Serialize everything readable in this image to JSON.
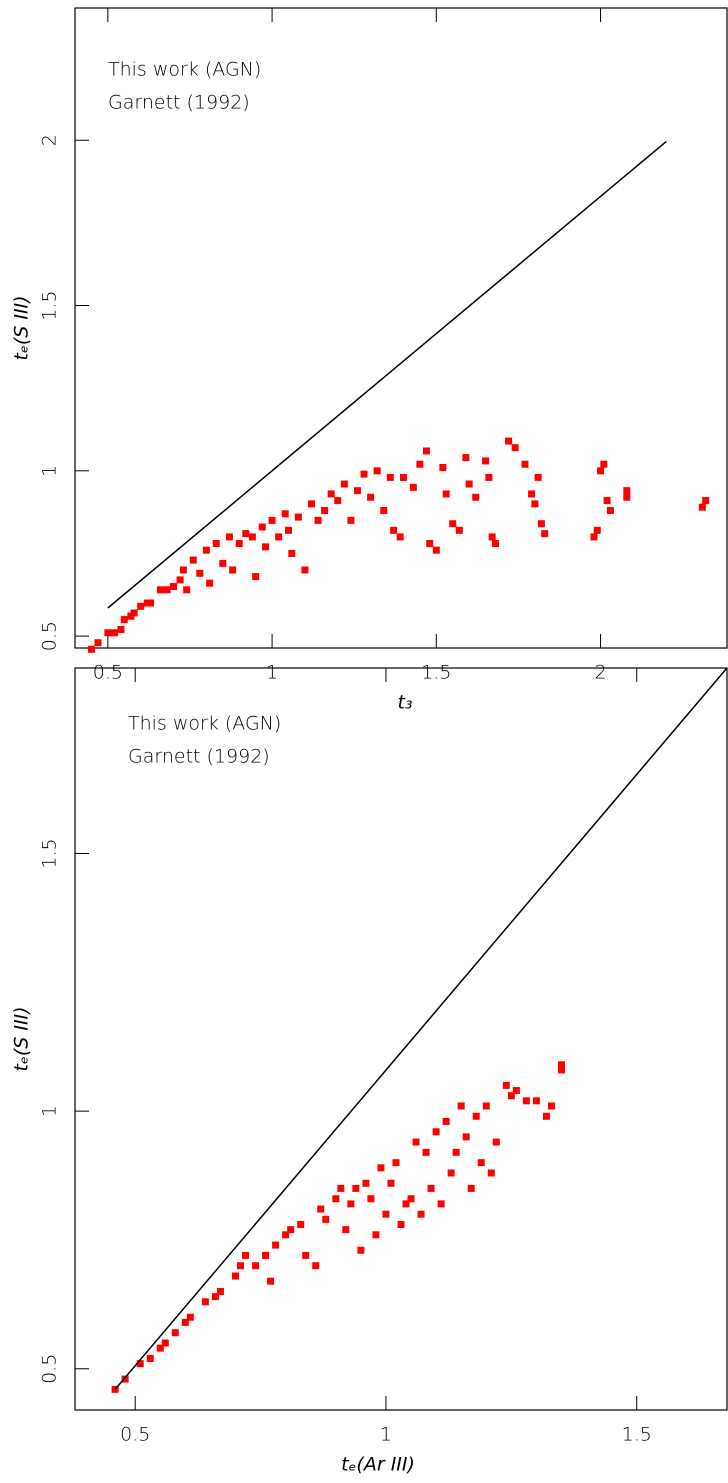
{
  "chart_data": [
    {
      "type": "scatter",
      "xlabel": "t₃",
      "ylabel": "tₑ(S III)",
      "xlim": [
        0.4,
        2.385
      ],
      "ylim": [
        0.464,
        2.4
      ],
      "xticks": [
        0.5,
        1,
        1.5,
        2
      ],
      "yticks": [
        0.5,
        1,
        1.5,
        2
      ],
      "series": [
        {
          "name": "This work (AGN)",
          "color": "#ff0000",
          "type": "scatter",
          "x": [
            0.45,
            0.47,
            0.5,
            0.52,
            0.54,
            0.55,
            0.57,
            0.58,
            0.6,
            0.62,
            0.63,
            0.66,
            0.68,
            0.7,
            0.72,
            0.73,
            0.74,
            0.76,
            0.78,
            0.8,
            0.81,
            0.83,
            0.85,
            0.87,
            0.88,
            0.9,
            0.92,
            0.94,
            0.95,
            0.97,
            0.98,
            1.0,
            1.02,
            1.04,
            1.05,
            1.06,
            1.08,
            1.1,
            1.12,
            1.14,
            1.16,
            1.18,
            1.2,
            1.22,
            1.24,
            1.26,
            1.28,
            1.3,
            1.32,
            1.34,
            1.36,
            1.37,
            1.39,
            1.4,
            1.43,
            1.45,
            1.47,
            1.48,
            1.5,
            1.52,
            1.53,
            1.55,
            1.57,
            1.59,
            1.6,
            1.62,
            1.65,
            1.66,
            1.67,
            1.68,
            1.72,
            1.74,
            1.77,
            1.79,
            1.8,
            1.81,
            1.82,
            1.83,
            1.98,
            1.99,
            2.0,
            2.01,
            2.02,
            2.03,
            2.08,
            2.08,
            2.31,
            2.32
          ],
          "values": [
            0.46,
            0.48,
            0.51,
            0.51,
            0.52,
            0.55,
            0.56,
            0.57,
            0.59,
            0.6,
            0.6,
            0.64,
            0.64,
            0.65,
            0.67,
            0.7,
            0.64,
            0.73,
            0.69,
            0.76,
            0.66,
            0.78,
            0.72,
            0.8,
            0.7,
            0.78,
            0.81,
            0.8,
            0.68,
            0.83,
            0.77,
            0.85,
            0.8,
            0.87,
            0.82,
            0.75,
            0.86,
            0.7,
            0.9,
            0.85,
            0.88,
            0.93,
            0.91,
            0.96,
            0.85,
            0.94,
            0.99,
            0.92,
            1.0,
            0.88,
            0.98,
            0.82,
            0.8,
            0.98,
            0.95,
            1.02,
            1.06,
            0.78,
            0.76,
            1.01,
            0.93,
            0.84,
            0.82,
            1.04,
            0.96,
            0.92,
            1.03,
            0.98,
            0.8,
            0.78,
            1.09,
            1.07,
            1.02,
            0.93,
            0.9,
            0.98,
            0.84,
            0.81,
            0.8,
            0.82,
            1.0,
            1.02,
            0.91,
            0.88,
            0.94,
            0.92,
            0.89,
            0.91
          ]
        },
        {
          "name": "Garnett (1992)",
          "color": "#000000",
          "type": "line",
          "x": [
            0.5,
            2.2
          ],
          "values": [
            0.585,
            1.996
          ]
        }
      ]
    },
    {
      "type": "scatter",
      "xlabel": "tₑ(Ar III)",
      "ylabel": "tₑ(S III)",
      "xlim": [
        0.38,
        1.68
      ],
      "ylim": [
        0.42,
        1.86
      ],
      "xticks": [
        0.5,
        1,
        1.5
      ],
      "yticks": [
        0.5,
        1,
        1.5
      ],
      "series": [
        {
          "name": "This work (AGN)",
          "color": "#ff0000",
          "type": "scatter",
          "x": [
            0.46,
            0.48,
            0.51,
            0.53,
            0.55,
            0.56,
            0.58,
            0.6,
            0.61,
            0.64,
            0.66,
            0.67,
            0.7,
            0.71,
            0.72,
            0.74,
            0.76,
            0.77,
            0.78,
            0.8,
            0.81,
            0.83,
            0.84,
            0.86,
            0.87,
            0.88,
            0.9,
            0.91,
            0.92,
            0.93,
            0.94,
            0.95,
            0.96,
            0.97,
            0.98,
            0.99,
            1.0,
            1.01,
            1.02,
            1.03,
            1.04,
            1.05,
            1.06,
            1.07,
            1.08,
            1.09,
            1.1,
            1.11,
            1.12,
            1.13,
            1.14,
            1.15,
            1.16,
            1.17,
            1.18,
            1.19,
            1.2,
            1.21,
            1.22,
            1.24,
            1.25,
            1.26,
            1.28,
            1.3,
            1.32,
            1.33,
            1.35,
            1.35
          ],
          "values": [
            0.46,
            0.48,
            0.51,
            0.52,
            0.54,
            0.55,
            0.57,
            0.59,
            0.6,
            0.63,
            0.64,
            0.65,
            0.68,
            0.7,
            0.72,
            0.7,
            0.72,
            0.67,
            0.74,
            0.76,
            0.77,
            0.78,
            0.72,
            0.7,
            0.81,
            0.79,
            0.83,
            0.85,
            0.77,
            0.82,
            0.85,
            0.73,
            0.86,
            0.83,
            0.76,
            0.89,
            0.8,
            0.86,
            0.9,
            0.78,
            0.82,
            0.83,
            0.94,
            0.8,
            0.92,
            0.85,
            0.96,
            0.82,
            0.98,
            0.88,
            0.92,
            1.01,
            0.95,
            0.85,
            0.99,
            0.9,
            1.01,
            0.88,
            0.94,
            1.05,
            1.03,
            1.04,
            1.02,
            1.02,
            0.99,
            1.01,
            1.08,
            1.09
          ]
        },
        {
          "name": "Garnett (1992)",
          "color": "#000000",
          "type": "line",
          "x": [
            0.46,
            1.68
          ],
          "values": [
            0.46,
            1.86
          ]
        }
      ]
    }
  ]
}
